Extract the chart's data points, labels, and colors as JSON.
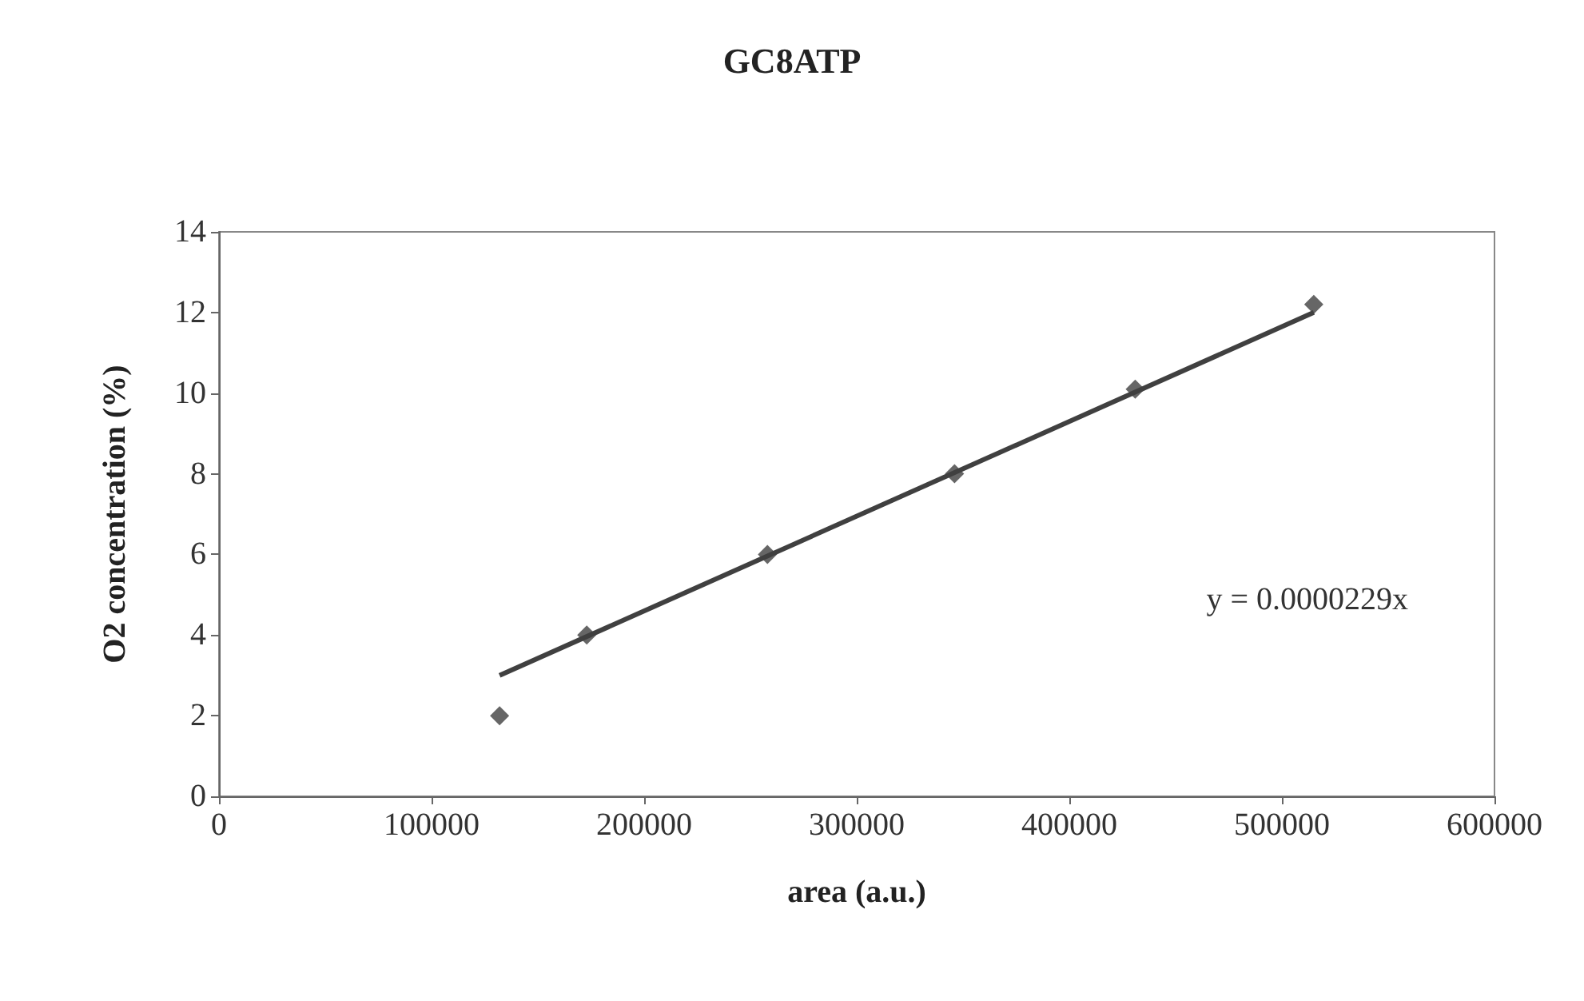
{
  "chart_data": {
    "type": "scatter",
    "title": "GC8ATP",
    "xlabel": "area (a.u.)",
    "ylabel": "O2 concentration (%)",
    "series": [
      {
        "color": "#404040",
        "marker": "diamond",
        "x": [
          132000,
          173000,
          258000,
          346000,
          431000,
          515000
        ],
        "values": [
          2.0,
          4.0,
          6.0,
          8.0,
          10.1,
          12.2
        ]
      },
      {
        "type": "line",
        "color": "#404040",
        "marker": "none",
        "line_style": "solid",
        "x": [
          132000,
          515000
        ],
        "values": [
          3.0,
          12.0
        ]
      }
    ],
    "xlim": [
      0,
      600000
    ],
    "xticks": [
      0,
      100000,
      200000,
      300000,
      400000,
      500000,
      600000
    ],
    "ylim": [
      0,
      14
    ],
    "yticks": [
      0,
      2,
      4,
      6,
      8,
      10,
      12,
      14
    ],
    "grid": false,
    "annotations": [
      "y = 0.0000229x"
    ]
  }
}
